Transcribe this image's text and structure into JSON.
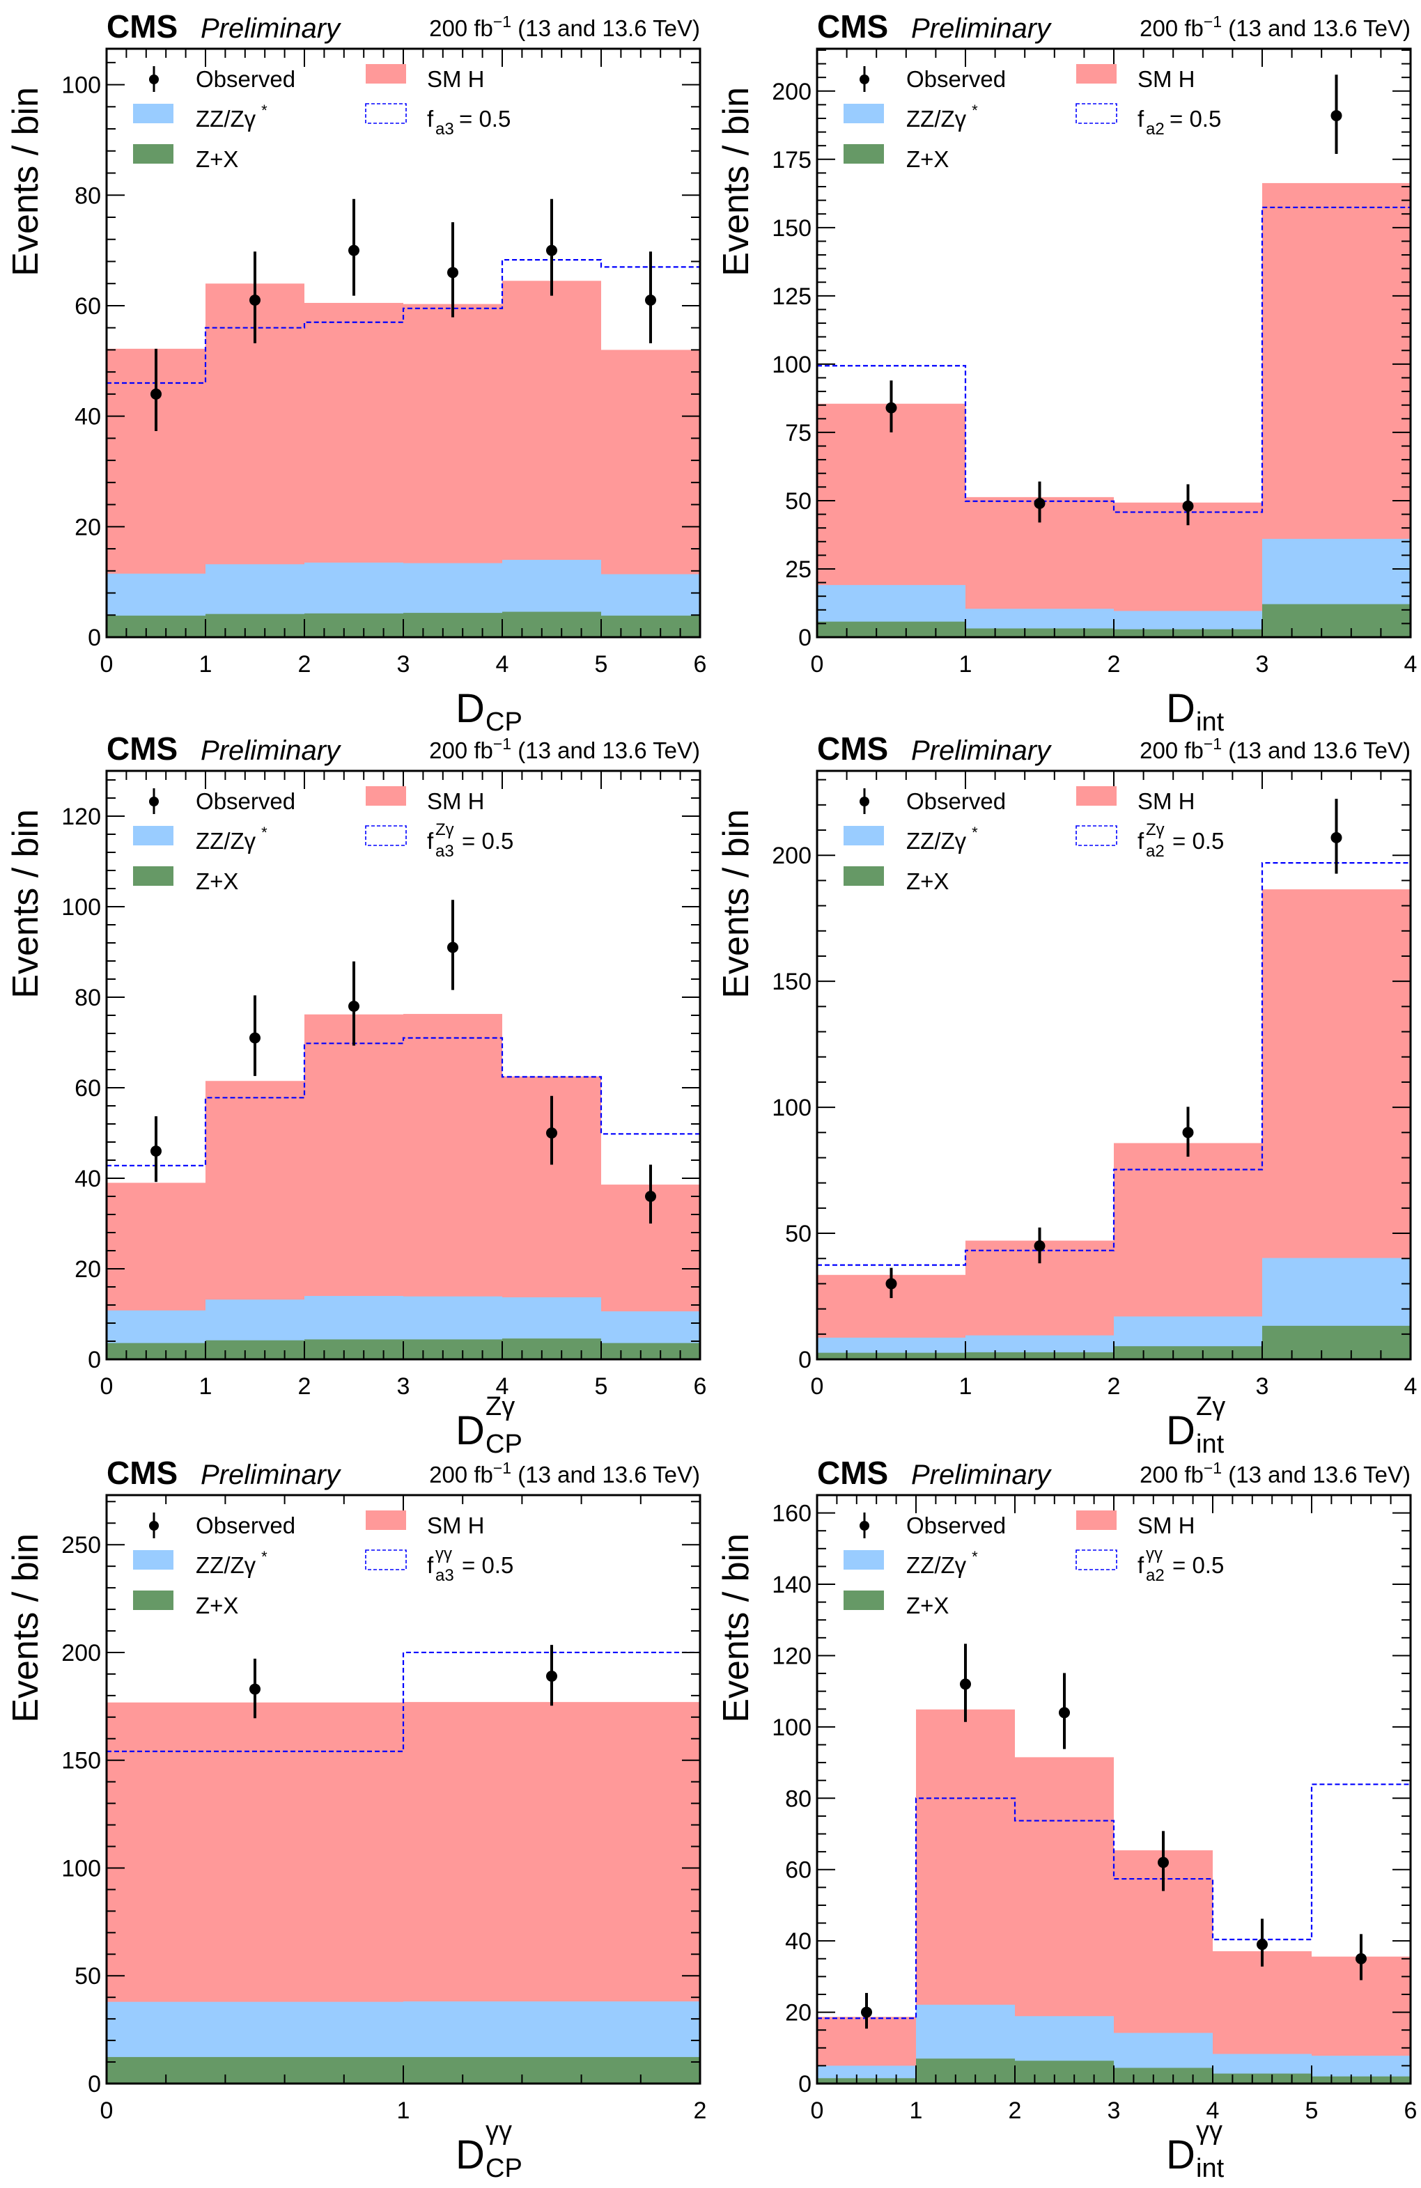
{
  "chart_data": [
    {
      "type": "bar",
      "subtype": "stacked-histogram",
      "header": {
        "experiment": "CMS",
        "status": "Preliminary",
        "lumi": "200 fb",
        "lumi_exp": "−1",
        "energy": "(13 and 13.6 TeV)"
      },
      "xlabel": "D",
      "xlabel_sub": "CP",
      "xlabel_sup": "",
      "ylabel": "Events / bin",
      "xlim": [
        0,
        6
      ],
      "ylim": [
        0,
        106.5
      ],
      "xticks": [
        0,
        1,
        2,
        3,
        4,
        5,
        6
      ],
      "yticks": [
        0,
        20,
        40,
        60,
        80,
        100
      ],
      "y_minor": 5,
      "bin_edges": [
        0,
        1,
        2,
        3,
        4,
        5,
        6
      ],
      "legend": {
        "observed": "Observed",
        "smh": "SM H",
        "zz": "ZZ/Zγ",
        "zz_sup": "*",
        "zx": "Z+X",
        "alt": "f",
        "alt_sub": "a3",
        "alt_sup": "",
        "alt_val": "= 0.5",
        "position": "top-left"
      },
      "series": [
        {
          "name": "Z+X",
          "values": [
            3.9,
            4.2,
            4.3,
            4.4,
            4.6,
            3.9
          ],
          "color": "#669966"
        },
        {
          "name": "ZZ/Zγ*",
          "values": [
            7.6,
            9.0,
            9.2,
            9.0,
            9.4,
            7.5
          ],
          "color": "#99ccff"
        },
        {
          "name": "SM H",
          "values": [
            40.7,
            50.8,
            47.0,
            46.9,
            50.5,
            40.6
          ],
          "color": "#ff9999"
        },
        {
          "name": "f_a3 = 0.5",
          "values": [
            46.0,
            56.0,
            57.0,
            59.5,
            68.3,
            67.0
          ],
          "color": "#0000ff",
          "style": "dashed-step"
        },
        {
          "name": "Observed",
          "values": [
            44,
            61,
            70,
            66,
            70,
            61
          ],
          "err_up": [
            52.2,
            69.8,
            79.3,
            75.1,
            79.3,
            69.8
          ],
          "err_down": [
            37.3,
            53.2,
            61.8,
            57.9,
            61.8,
            53.2
          ],
          "color": "#000000"
        }
      ]
    },
    {
      "type": "bar",
      "subtype": "stacked-histogram",
      "header": {
        "experiment": "CMS",
        "status": "Preliminary",
        "lumi": "200 fb",
        "lumi_exp": "−1",
        "energy": "(13 and 13.6 TeV)"
      },
      "xlabel": "D",
      "xlabel_sub": "int",
      "xlabel_sup": "",
      "ylabel": "Events / bin",
      "xlim": [
        0,
        4
      ],
      "ylim": [
        0,
        215.5
      ],
      "xticks": [
        0,
        1,
        2,
        3,
        4
      ],
      "yticks": [
        0,
        25,
        50,
        75,
        100,
        125,
        150,
        175,
        200
      ],
      "y_minor": 5,
      "bin_edges": [
        0,
        1,
        2,
        3,
        4
      ],
      "legend": {
        "observed": "Observed",
        "smh": "SM H",
        "zz": "ZZ/Zγ",
        "zz_sup": "*",
        "zx": "Z+X",
        "alt": "f",
        "alt_sub": "a2",
        "alt_sup": "",
        "alt_val": "= 0.5",
        "position": "top-left"
      },
      "series": [
        {
          "name": "Z+X",
          "values": [
            5.7,
            3.2,
            2.9,
            12.1
          ],
          "color": "#669966"
        },
        {
          "name": "ZZ/Zγ*",
          "values": [
            13.4,
            7.2,
            6.7,
            23.9
          ],
          "color": "#99ccff"
        },
        {
          "name": "SM H",
          "values": [
            66.4,
            40.9,
            39.7,
            130.3
          ],
          "color": "#ff9999"
        },
        {
          "name": "f_a2 = 0.5",
          "values": [
            99.4,
            49.8,
            45.8,
            157.4
          ],
          "color": "#0000ff",
          "style": "dashed-step"
        },
        {
          "name": "Observed",
          "values": [
            84,
            49,
            48,
            191
          ],
          "err_up": [
            94.0,
            57.0,
            56.0,
            206.0
          ],
          "err_down": [
            75.0,
            42.0,
            41.0,
            177.0
          ],
          "color": "#000000"
        }
      ]
    },
    {
      "type": "bar",
      "subtype": "stacked-histogram",
      "header": {
        "experiment": "CMS",
        "status": "Preliminary",
        "lumi": "200 fb",
        "lumi_exp": "−1",
        "energy": "(13 and 13.6 TeV)"
      },
      "xlabel": "D",
      "xlabel_sub": "CP",
      "xlabel_sup": "Zγ",
      "ylabel": "Events / bin",
      "xlim": [
        0,
        6
      ],
      "ylim": [
        0,
        130
      ],
      "xticks": [
        0,
        1,
        2,
        3,
        4,
        5,
        6
      ],
      "yticks": [
        0,
        20,
        40,
        60,
        80,
        100,
        120
      ],
      "y_minor": 5,
      "bin_edges": [
        0,
        1,
        2,
        3,
        4,
        5,
        6
      ],
      "legend": {
        "observed": "Observed",
        "smh": "SM H",
        "zz": "ZZ/Zγ",
        "zz_sup": "*",
        "zx": "Z+X",
        "alt": "f",
        "alt_sub": "a3",
        "alt_sup": "Zγ",
        "alt_val": "= 0.5",
        "position": "top-left"
      },
      "series": [
        {
          "name": "Z+X",
          "values": [
            3.6,
            4.2,
            4.4,
            4.4,
            4.6,
            3.6
          ],
          "color": "#669966"
        },
        {
          "name": "ZZ/Zγ*",
          "values": [
            7.2,
            9.0,
            9.6,
            9.5,
            9.1,
            7.0
          ],
          "color": "#99ccff"
        },
        {
          "name": "SM H",
          "values": [
            28.2,
            48.3,
            62.2,
            62.4,
            48.8,
            28.0
          ],
          "color": "#ff9999"
        },
        {
          "name": "f_a3^Zγ = 0.5",
          "values": [
            42.8,
            57.8,
            69.8,
            71.0,
            62.4,
            49.8
          ],
          "color": "#0000ff",
          "style": "dashed-step"
        },
        {
          "name": "Observed",
          "values": [
            46,
            71,
            78,
            91,
            50,
            36
          ],
          "err_up": [
            53.7,
            80.4,
            87.9,
            101.5,
            58.2,
            43.0
          ],
          "err_down": [
            39.2,
            62.6,
            69.3,
            81.6,
            43.0,
            30.0
          ],
          "color": "#000000"
        }
      ]
    },
    {
      "type": "bar",
      "subtype": "stacked-histogram",
      "header": {
        "experiment": "CMS",
        "status": "Preliminary",
        "lumi": "200 fb",
        "lumi_exp": "−1",
        "energy": "(13 and 13.6 TeV)"
      },
      "xlabel": "D",
      "xlabel_sub": "int",
      "xlabel_sup": "Zγ",
      "ylabel": "Events / bin",
      "xlim": [
        0,
        4
      ],
      "ylim": [
        0,
        233.5
      ],
      "xticks": [
        0,
        1,
        2,
        3,
        4
      ],
      "yticks": [
        0,
        50,
        100,
        150,
        200
      ],
      "y_minor": 5,
      "bin_edges": [
        0,
        1,
        2,
        3,
        4
      ],
      "legend": {
        "observed": "Observed",
        "smh": "SM H",
        "zz": "ZZ/Zγ",
        "zz_sup": "*",
        "zx": "Z+X",
        "alt": "f",
        "alt_sub": "a2",
        "alt_sup": "Zγ",
        "alt_val": "= 0.5",
        "position": "top-left"
      },
      "series": [
        {
          "name": "Z+X",
          "values": [
            2.6,
            2.8,
            5.2,
            13.3
          ],
          "color": "#669966"
        },
        {
          "name": "ZZ/Zγ*",
          "values": [
            6.0,
            6.7,
            11.8,
            26.9
          ],
          "color": "#99ccff"
        },
        {
          "name": "SM H",
          "values": [
            24.9,
            37.6,
            68.8,
            146.3
          ],
          "color": "#ff9999"
        },
        {
          "name": "f_a2^Zγ = 0.5",
          "values": [
            37.4,
            43.2,
            75.3,
            197.0
          ],
          "color": "#0000ff",
          "style": "dashed-step"
        },
        {
          "name": "Observed",
          "values": [
            30,
            45,
            90,
            207
          ],
          "err_up": [
            36.3,
            52.3,
            100.2,
            222.4
          ],
          "err_down": [
            24.3,
            38.1,
            80.4,
            192.7
          ],
          "color": "#000000"
        }
      ]
    },
    {
      "type": "bar",
      "subtype": "stacked-histogram",
      "header": {
        "experiment": "CMS",
        "status": "Preliminary",
        "lumi": "200 fb",
        "lumi_exp": "−1",
        "energy": "(13 and 13.6 TeV)"
      },
      "xlabel": "D",
      "xlabel_sub": "CP",
      "xlabel_sup": "γγ",
      "ylabel": "Events / bin",
      "xlim": [
        0,
        2
      ],
      "ylim": [
        0,
        273
      ],
      "xticks": [
        0,
        1,
        2
      ],
      "yticks": [
        0,
        50,
        100,
        150,
        200,
        250
      ],
      "y_minor": 5,
      "x_minor": 5,
      "bin_edges": [
        0,
        1,
        2
      ],
      "legend": {
        "observed": "Observed",
        "smh": "SM H",
        "zz": "ZZ/Zγ",
        "zz_sup": "*",
        "zx": "Z+X",
        "alt": "f",
        "alt_sub": "a3",
        "alt_sup": "γγ",
        "alt_val": "= 0.5",
        "position": "top-left"
      },
      "series": [
        {
          "name": "Z+X",
          "values": [
            12.3,
            12.3
          ],
          "color": "#669966"
        },
        {
          "name": "ZZ/Zγ*",
          "values": [
            25.6,
            25.8
          ],
          "color": "#99ccff"
        },
        {
          "name": "SM H",
          "values": [
            138.9,
            138.9
          ],
          "color": "#ff9999"
        },
        {
          "name": "f_a3^γγ = 0.5",
          "values": [
            154.1,
            200.0
          ],
          "color": "#0000ff",
          "style": "dashed-step"
        },
        {
          "name": "Observed",
          "values": [
            183,
            189
          ],
          "err_up": [
            197.1,
            203.5
          ],
          "err_down": [
            169.5,
            175.3
          ],
          "color": "#000000"
        }
      ]
    },
    {
      "type": "bar",
      "subtype": "stacked-histogram",
      "header": {
        "experiment": "CMS",
        "status": "Preliminary",
        "lumi": "200 fb",
        "lumi_exp": "−1",
        "energy": "(13 and 13.6 TeV)"
      },
      "xlabel": "D",
      "xlabel_sub": "int",
      "xlabel_sup": "γγ",
      "ylabel": "Events / bin",
      "xlim": [
        0,
        6
      ],
      "ylim": [
        0,
        165
      ],
      "xticks": [
        0,
        1,
        2,
        3,
        4,
        5,
        6
      ],
      "yticks": [
        0,
        20,
        40,
        60,
        80,
        100,
        120,
        140,
        160
      ],
      "y_minor": 4,
      "bin_edges": [
        0,
        1,
        2,
        3,
        4,
        5,
        6
      ],
      "legend": {
        "observed": "Observed",
        "smh": "SM H",
        "zz": "ZZ/Zγ",
        "zz_sup": "*",
        "zx": "Z+X",
        "alt": "f",
        "alt_sub": "a2",
        "alt_sup": "γγ",
        "alt_val": "= 0.5",
        "position": "top-left"
      },
      "series": [
        {
          "name": "Z+X",
          "values": [
            1.5,
            7.0,
            6.4,
            4.4,
            2.8,
            2.0
          ],
          "color": "#669966"
        },
        {
          "name": "ZZ/Zγ*",
          "values": [
            3.5,
            15.1,
            12.5,
            9.8,
            5.5,
            5.8
          ],
          "color": "#99ccff"
        },
        {
          "name": "SM H",
          "values": [
            13.7,
            82.8,
            72.6,
            51.2,
            28.8,
            27.8
          ],
          "color": "#ff9999"
        },
        {
          "name": "f_a2^γγ = 0.5",
          "values": [
            18.3,
            80.0,
            73.7,
            57.4,
            40.4,
            83.9
          ],
          "color": "#0000ff",
          "style": "dashed-step"
        },
        {
          "name": "Observed",
          "values": [
            20,
            112,
            104,
            62,
            39,
            35
          ],
          "err_up": [
            25.4,
            123.3,
            115.1,
            70.8,
            46.2,
            41.9
          ],
          "err_down": [
            15.4,
            101.4,
            93.8,
            54.0,
            32.8,
            29.0
          ],
          "color": "#000000"
        }
      ]
    }
  ]
}
